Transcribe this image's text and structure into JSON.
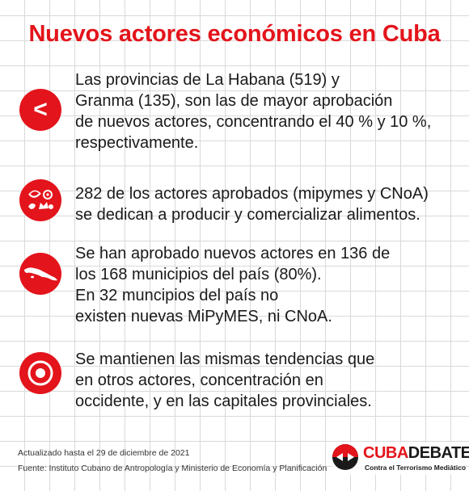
{
  "title": "Nuevos actores económicos en Cuba",
  "items": [
    {
      "icon": "less-than-icon",
      "icon_glyph": "<",
      "lines": [
        "Las provincias de La Habana (519) y",
        "Granma (135), son las de mayor aprobación",
        "de nuevos actores, concentrando el 40 % y 10 %,",
        "respectivamente."
      ]
    },
    {
      "icon": "food-icon",
      "lines": [
        "282 de los actores aprobados (mipymes y CNoA)",
        "se dedican a producir y comercializar alimentos."
      ]
    },
    {
      "icon": "cuba-map-icon",
      "lines": [
        "Se han aprobado nuevos actores en 136 de",
        "los 168 municipios del país (80%).",
        "En 32 muncipios del país no",
        "existen nuevas MiPyMES, ni CNoA."
      ]
    },
    {
      "icon": "target-icon",
      "lines": [
        "Se mantienen las mismas tendencias que",
        "en otros actores, concentración en",
        "occidente, y en las capitales provinciales."
      ]
    }
  ],
  "footer": {
    "updated": "Actualizado hasta el 29 de diciembre de 2021",
    "source": "Fuente: Instituto Cubano de Antropología y Ministerio de Economía y Planificación"
  },
  "logo": {
    "brand_a": "CUBA",
    "brand_b": "DEBATE",
    "tagline": "Contra el Terrorismo Mediático"
  },
  "colors": {
    "accent": "#e3141b",
    "text": "#1a1a1a",
    "grid": "#d9d9d9"
  }
}
